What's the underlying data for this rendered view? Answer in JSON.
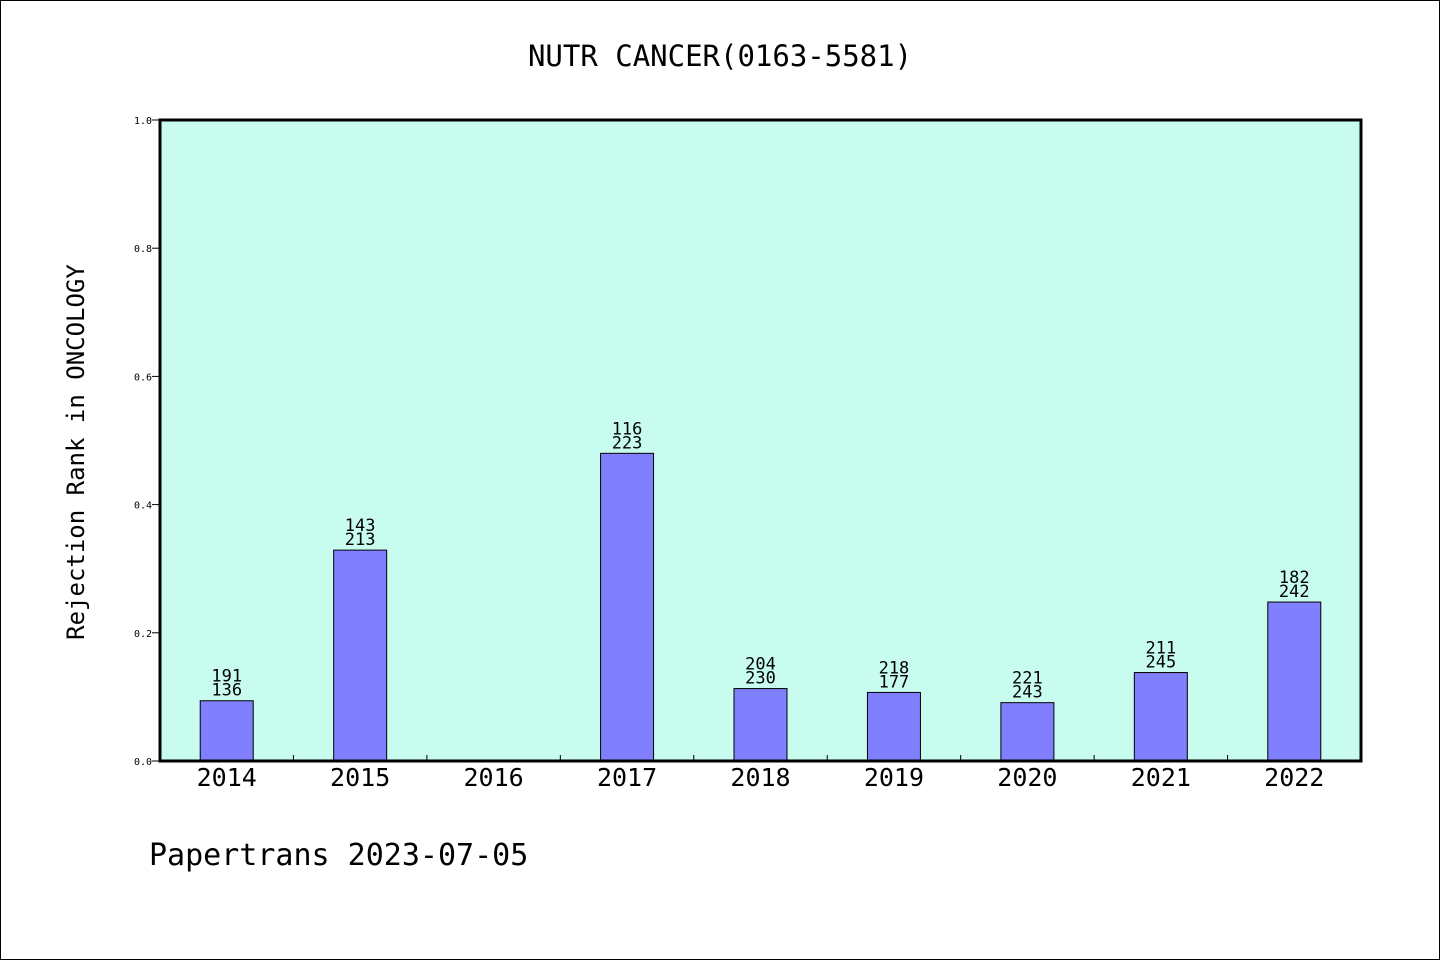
{
  "chart_data": {
    "type": "bar",
    "title": "NUTR CANCER(0163-5581)",
    "xlabel": "",
    "ylabel": "Rejection Rank in ONCOLOGY",
    "categories": [
      "2014",
      "2015",
      "2016",
      "2017",
      "2018",
      "2019",
      "2020",
      "2021",
      "2022"
    ],
    "values": [
      0.094,
      0.329,
      null,
      0.48,
      0.113,
      0.107,
      0.091,
      0.138,
      0.248
    ],
    "bar_labels_top": [
      "191",
      "143",
      "",
      "116",
      "204",
      "218",
      "221",
      "211",
      "182"
    ],
    "bar_labels_bottom": [
      "136",
      "213",
      "",
      "223",
      "230",
      "177",
      "243",
      "245",
      "242"
    ],
    "ylim": [
      0,
      1.0
    ],
    "yticks": [
      "0.0",
      "0.2",
      "0.4",
      "0.6",
      "0.8",
      "1.0"
    ],
    "grid": false,
    "legend": "none",
    "colors": {
      "plot_background": "#c8fcef",
      "bar_fill": "#8080ff",
      "bar_stroke": "#000000"
    }
  },
  "footer": "Papertrans 2023-07-05"
}
